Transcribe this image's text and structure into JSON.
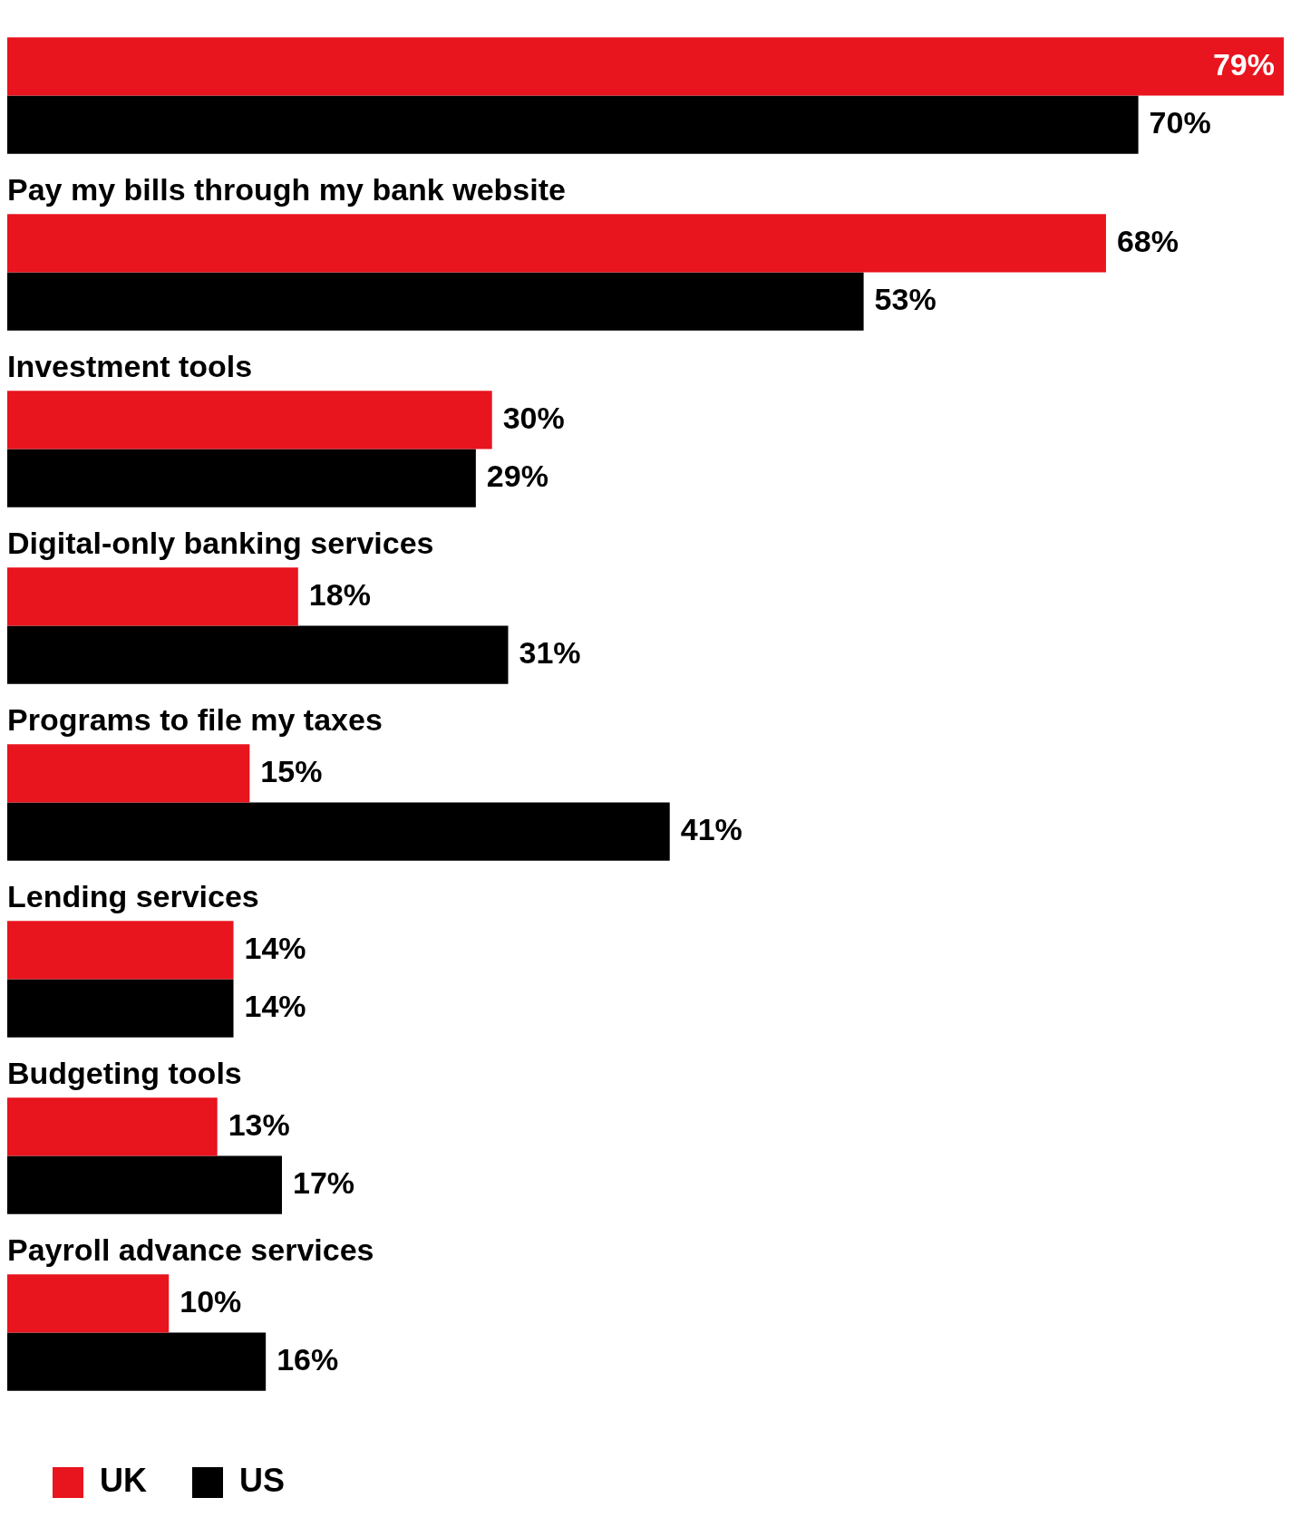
{
  "chart_data": {
    "type": "bar",
    "orientation": "horizontal",
    "categories": [
      null,
      "Pay my bills through my bank website",
      "Investment tools",
      "Digital-only banking services",
      "Programs to file my taxes",
      "Lending services",
      "Budgeting tools",
      "Payroll advance services"
    ],
    "series": [
      {
        "name": "UK",
        "color": "#e8141e",
        "values": [
          79,
          68,
          30,
          18,
          15,
          14,
          13,
          10
        ],
        "value_labels": [
          "79%",
          "68%",
          "30%",
          "18%",
          "15%",
          "14%",
          "13%",
          "10%"
        ]
      },
      {
        "name": "US",
        "color": "#000000",
        "values": [
          70,
          53,
          29,
          31,
          41,
          14,
          17,
          16
        ],
        "value_labels": [
          "70%",
          "53%",
          "29%",
          "31%",
          "41%",
          "14%",
          "17%",
          "16%"
        ]
      }
    ],
    "legend": "bottom left"
  }
}
